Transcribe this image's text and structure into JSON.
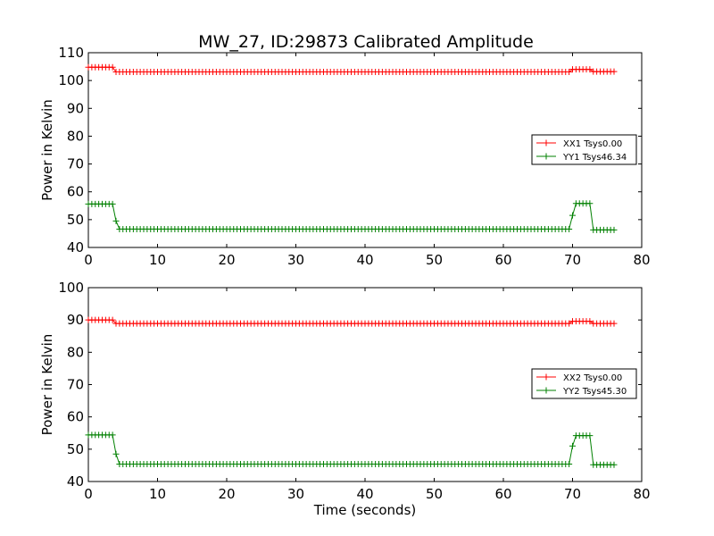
{
  "title": "MW_27, ID:29873 Calibrated Amplitude",
  "colors": {
    "xx": "#ff0000",
    "yy": "#008000",
    "axis": "#000000",
    "background": "#ffffff"
  },
  "chart_data": [
    {
      "type": "line",
      "title": "MW_27, ID:29873 Calibrated Amplitude",
      "xlabel": "",
      "ylabel": "Power in Kelvin",
      "xlim": [
        0,
        80
      ],
      "ylim": [
        40,
        110
      ],
      "xticks": [
        "0",
        "10",
        "20",
        "30",
        "40",
        "50",
        "60",
        "70",
        "80"
      ],
      "yticks": [
        "40",
        "50",
        "60",
        "70",
        "80",
        "90",
        "100",
        "110"
      ],
      "grid": false,
      "legend_position": "right",
      "marker": "plus",
      "series": [
        {
          "name": "XX1 Tsys0.00",
          "color": "#ff0000",
          "segments": [
            {
              "from": 0,
              "to": 3.5,
              "value": 104.8
            },
            {
              "from": 4.0,
              "to": 69.5,
              "value": 103.1
            },
            {
              "from": 70.0,
              "to": 72.5,
              "value": 104.0
            },
            {
              "from": 73.0,
              "to": 76.0,
              "value": 103.2
            }
          ]
        },
        {
          "name": "YY1 Tsys46.34",
          "color": "#008000",
          "segments": [
            {
              "from": 0,
              "to": 3.5,
              "value": 55.6
            },
            {
              "from": 4.0,
              "to": 4.0,
              "value": 49.5
            },
            {
              "from": 4.5,
              "to": 69.5,
              "value": 46.6
            },
            {
              "from": 70.0,
              "to": 70.0,
              "value": 51.5
            },
            {
              "from": 70.5,
              "to": 72.5,
              "value": 55.8
            },
            {
              "from": 73.0,
              "to": 76.0,
              "value": 46.3
            }
          ]
        }
      ]
    },
    {
      "type": "line",
      "title": "",
      "xlabel": "Time (seconds)",
      "ylabel": "Power in Kelvin",
      "xlim": [
        0,
        80
      ],
      "ylim": [
        40,
        100
      ],
      "xticks": [
        "0",
        "10",
        "20",
        "30",
        "40",
        "50",
        "60",
        "70",
        "80"
      ],
      "yticks": [
        "40",
        "50",
        "60",
        "70",
        "80",
        "90",
        "100"
      ],
      "grid": false,
      "legend_position": "right",
      "marker": "plus",
      "series": [
        {
          "name": "XX2 Tsys0.00",
          "color": "#ff0000",
          "segments": [
            {
              "from": 0,
              "to": 3.5,
              "value": 90.0
            },
            {
              "from": 4.0,
              "to": 69.5,
              "value": 88.9
            },
            {
              "from": 70.0,
              "to": 72.5,
              "value": 89.6
            },
            {
              "from": 73.0,
              "to": 76.0,
              "value": 88.9
            }
          ]
        },
        {
          "name": "YY2 Tsys45.30",
          "color": "#008000",
          "segments": [
            {
              "from": 0,
              "to": 3.5,
              "value": 54.4
            },
            {
              "from": 4.0,
              "to": 4.0,
              "value": 48.5
            },
            {
              "from": 4.5,
              "to": 69.5,
              "value": 45.4
            },
            {
              "from": 70.0,
              "to": 70.0,
              "value": 51.0
            },
            {
              "from": 70.5,
              "to": 72.5,
              "value": 54.2
            },
            {
              "from": 73.0,
              "to": 76.0,
              "value": 45.2
            }
          ]
        }
      ]
    }
  ]
}
